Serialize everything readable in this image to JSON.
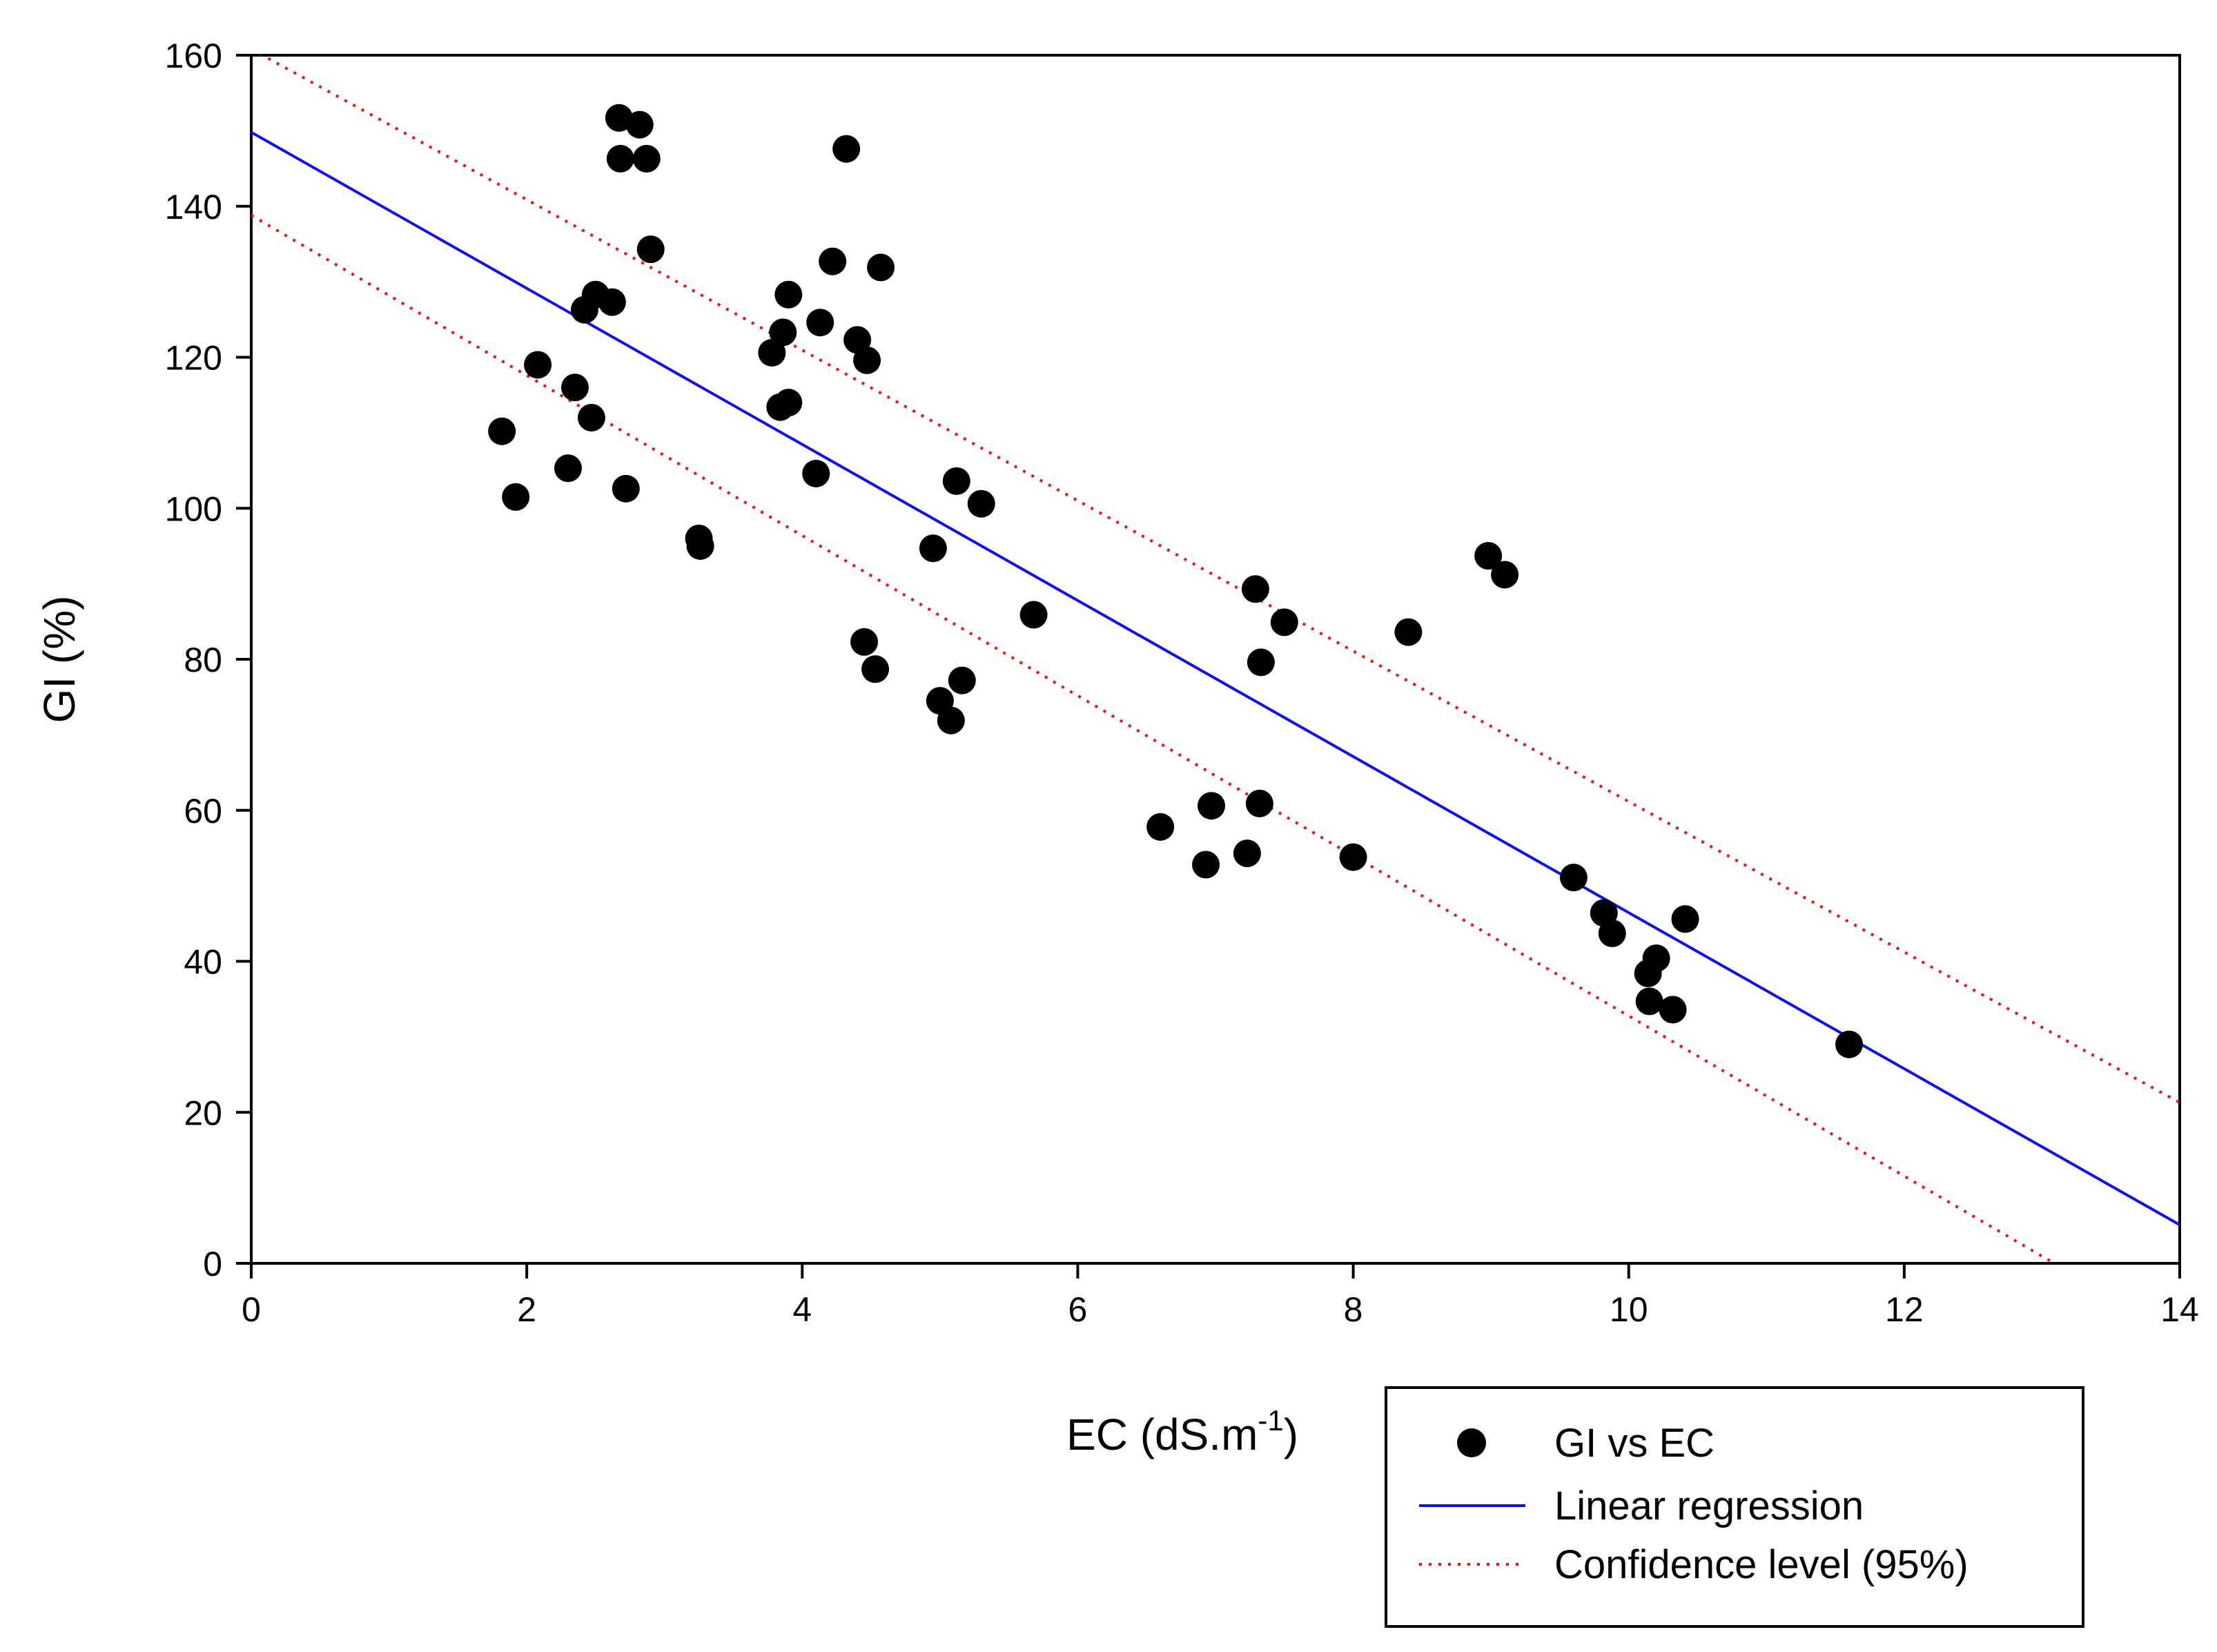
{
  "chart_data": {
    "type": "scatter",
    "title": "",
    "xlabel": "EC (dS.m",
    "xlabel_superscript": "-1",
    "xlabel_suffix": ")",
    "ylabel": "GI (%)",
    "xlim": [
      0,
      14
    ],
    "ylim": [
      0,
      160
    ],
    "x_ticks": [
      "0",
      "2",
      "4",
      "6",
      "8",
      "10",
      "12",
      "14"
    ],
    "y_ticks": [
      "0",
      "20",
      "40",
      "60",
      "80",
      "100",
      "120",
      "140",
      "160"
    ],
    "grid": false,
    "legend_position": "bottom-right-outside",
    "colors": {
      "points": "#000000",
      "regression": "#1010ee",
      "confidence": "#ee1010"
    },
    "series": [
      {
        "name": "GI vs EC",
        "kind": "points",
        "points": [
          [
            1.82,
            110.2
          ],
          [
            1.92,
            101.5
          ],
          [
            2.08,
            119.0
          ],
          [
            2.3,
            105.3
          ],
          [
            2.35,
            116.0
          ],
          [
            2.42,
            126.3
          ],
          [
            2.47,
            112.0
          ],
          [
            2.5,
            128.3
          ],
          [
            2.62,
            127.3
          ],
          [
            2.67,
            151.7
          ],
          [
            2.68,
            146.3
          ],
          [
            2.72,
            102.6
          ],
          [
            2.82,
            150.8
          ],
          [
            2.87,
            146.3
          ],
          [
            2.9,
            134.3
          ],
          [
            3.25,
            96.0
          ],
          [
            3.26,
            95.0
          ],
          [
            3.78,
            120.6
          ],
          [
            3.84,
            113.4
          ],
          [
            3.86,
            123.3
          ],
          [
            3.9,
            128.3
          ],
          [
            3.9,
            114.0
          ],
          [
            4.1,
            104.6
          ],
          [
            4.13,
            124.6
          ],
          [
            4.22,
            132.7
          ],
          [
            4.32,
            147.6
          ],
          [
            4.4,
            122.3
          ],
          [
            4.45,
            82.3
          ],
          [
            4.47,
            119.6
          ],
          [
            4.53,
            78.7
          ],
          [
            4.57,
            131.9
          ],
          [
            4.95,
            94.7
          ],
          [
            5.0,
            74.5
          ],
          [
            5.08,
            71.9
          ],
          [
            5.12,
            103.6
          ],
          [
            5.16,
            77.2
          ],
          [
            5.3,
            100.6
          ],
          [
            5.68,
            85.9
          ],
          [
            6.6,
            57.8
          ],
          [
            6.93,
            52.8
          ],
          [
            6.97,
            60.6
          ],
          [
            7.23,
            54.3
          ],
          [
            7.29,
            89.3
          ],
          [
            7.32,
            60.9
          ],
          [
            7.33,
            79.6
          ],
          [
            7.5,
            84.9
          ],
          [
            8.0,
            53.8
          ],
          [
            8.4,
            83.6
          ],
          [
            8.98,
            93.7
          ],
          [
            9.1,
            91.2
          ],
          [
            9.6,
            51.1
          ],
          [
            9.82,
            46.4
          ],
          [
            9.88,
            43.7
          ],
          [
            10.14,
            38.4
          ],
          [
            10.15,
            34.7
          ],
          [
            10.2,
            40.4
          ],
          [
            10.32,
            33.6
          ],
          [
            10.41,
            45.6
          ],
          [
            11.6,
            29.0
          ]
        ]
      },
      {
        "name": "Linear regression",
        "kind": "line",
        "points": [
          [
            0,
            149.8
          ],
          [
            14,
            5.1
          ]
        ]
      },
      {
        "name": "Confidence level (95%)",
        "kind": "dotted",
        "upper": [
          [
            0,
            160.8
          ],
          [
            14,
            21.3
          ]
        ],
        "lower": [
          [
            0,
            138.8
          ],
          [
            13.09,
            0
          ]
        ]
      }
    ]
  }
}
